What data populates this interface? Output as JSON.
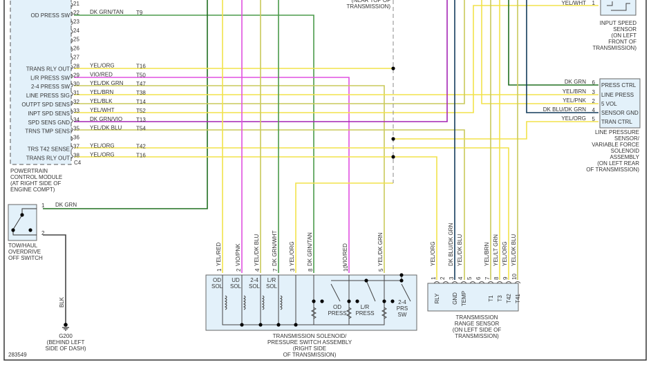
{
  "colors": {
    "yellow": "#f2e24a",
    "olive": "#c9c95a",
    "magenta": "#e050e0",
    "violet_thick": "#a424b4",
    "green": "#4a9a4a",
    "dark_green": "#1f6e1f",
    "dark_blue": "#123a5a",
    "black": "#444444",
    "box_fill": "#e3f1fa"
  },
  "pcm": {
    "pins": [
      {
        "pin": "21",
        "label": "",
        "wire": "",
        "circuit": ""
      },
      {
        "pin": "22",
        "label": "OD PRESS SW",
        "wire": "DK GRN/TAN",
        "circuit": "T9"
      },
      {
        "pin": "23",
        "label": "",
        "wire": "",
        "circuit": ""
      },
      {
        "pin": "24",
        "label": "",
        "wire": "",
        "circuit": ""
      },
      {
        "pin": "25",
        "label": "",
        "wire": "",
        "circuit": ""
      },
      {
        "pin": "26",
        "label": "",
        "wire": "",
        "circuit": ""
      },
      {
        "pin": "27",
        "label": "",
        "wire": "",
        "circuit": ""
      },
      {
        "pin": "28",
        "label": "TRANS RLY OUT",
        "wire": "YEL/ORG",
        "circuit": "T16"
      },
      {
        "pin": "29",
        "label": "L/R PRESS SW",
        "wire": "VIO/RED",
        "circuit": "T50"
      },
      {
        "pin": "30",
        "label": "2-4 PRESS SW",
        "wire": "YEL/DK GRN",
        "circuit": "T47"
      },
      {
        "pin": "31",
        "label": "LINE PRESS SIG",
        "wire": "YEL/BRN",
        "circuit": "T38"
      },
      {
        "pin": "32",
        "label": "OUTPT SPD SENS",
        "wire": "YEL/BLK",
        "circuit": "T14"
      },
      {
        "pin": "33",
        "label": "INPT SPD SENS",
        "wire": "YEL/WHT",
        "circuit": "T52"
      },
      {
        "pin": "34",
        "label": "SPD SENS GND",
        "wire": "DK GRN/VIO",
        "circuit": "T13"
      },
      {
        "pin": "35",
        "label": "TRNS TMP SENS",
        "wire": "YEL/DK BLU",
        "circuit": "T54"
      },
      {
        "pin": "36",
        "label": "",
        "wire": "",
        "circuit": ""
      },
      {
        "pin": "37",
        "label": "TRS T42 SENSE",
        "wire": "YEL/ORG",
        "circuit": "T42"
      },
      {
        "pin": "38",
        "label": "TRANS RLY OUT",
        "wire": "YEL/ORG",
        "circuit": "T16"
      }
    ],
    "connector": "C4",
    "caption": [
      "POWERTRAIN",
      "CONTROL MODULE",
      "(AT RIGHT SIDE OF",
      "ENGINE COMPT)"
    ]
  },
  "splice": {
    "caption": [
      "(NEAR TOP OF",
      "TRANSMISSION)"
    ]
  },
  "towhaul": {
    "caption": [
      "TOW/HAUL",
      "OVERDRIVE",
      "OFF SWITCH"
    ],
    "pin1": "1",
    "pin2": "2",
    "wire1": "DK GRN",
    "wire2": "BLK"
  },
  "ground": {
    "caption": [
      "G200",
      "(BEHIND LEFT",
      "SIDE OF DASH)"
    ]
  },
  "figure_id": "283549",
  "iss": {
    "pin": "1",
    "wire": "YEL/WHT",
    "caption": [
      "INPUT SPEED",
      "SENSOR",
      "(ON LEFT",
      "FRONT OF",
      "TRANSMISSION)"
    ]
  },
  "lps": {
    "pins": [
      {
        "pin": "6",
        "wire": "DK GRN",
        "label": "PRESS CTRL"
      },
      {
        "pin": "3",
        "wire": "YEL/BRN",
        "label": "LINE PRESS"
      },
      {
        "pin": "2",
        "wire": "YEL/PNK",
        "label": "5 VOL"
      },
      {
        "pin": "4",
        "wire": "DK BLU/DK GRN",
        "label": "SENSOR GND"
      },
      {
        "pin": "5",
        "wire": "YEL/ORG",
        "label": "TRAN CTRL"
      }
    ],
    "caption": [
      "LINE PRESSURE",
      "SENSOR/",
      "VARIABLE FORCE",
      "SOLENOID",
      "ASSEMBLY",
      "(ON LEFT REAR",
      "OF TRANSMISSION)"
    ]
  },
  "solenoid": {
    "pins": [
      {
        "pin": "1",
        "wire": "YEL/RED"
      },
      {
        "pin": "2",
        "wire": "VIO/PNK"
      },
      {
        "pin": "4",
        "wire": "YEL/DK BLU"
      },
      {
        "pin": "7",
        "wire": "DK GRN/WHT"
      },
      {
        "pin": "3",
        "wire": "YEL/ORG"
      },
      {
        "pin": "8",
        "wire": "DK GRN/TAN"
      },
      {
        "pin": "10",
        "wire": "VIO/RED"
      },
      {
        "pin": "5",
        "wire": "YEL/DK GRN"
      }
    ],
    "components": [
      [
        "OD",
        "SOL"
      ],
      [
        "UD",
        "SOL"
      ],
      [
        "2-4",
        "SOL"
      ],
      [
        "L/R",
        "SOL"
      ],
      [
        "OD",
        "PRESS"
      ],
      [
        "L/R",
        "PRESS"
      ],
      [
        "2-4",
        "PRS",
        "SW"
      ]
    ],
    "caption": [
      "TRANSMISSION SOLENOID/",
      "PRESSURE SWITCH ASSEMBLY",
      "(RIGHT SIDE",
      "OF TRANSMISSION)"
    ]
  },
  "trs": {
    "pins": [
      {
        "pin": "1",
        "wire": "YEL/ORG",
        "label": "RLY"
      },
      {
        "pin": "2",
        "wire": "",
        "label": ""
      },
      {
        "pin": "3",
        "wire": "DK BLU/DK GRN",
        "label": "GND"
      },
      {
        "pin": "4",
        "wire": "YEL/DK BLU",
        "label": "TEMP"
      },
      {
        "pin": "5",
        "wire": "",
        "label": ""
      },
      {
        "pin": "6",
        "wire": "",
        "label": ""
      },
      {
        "pin": "7",
        "wire": "YEL/BRN",
        "label": "T1"
      },
      {
        "pin": "8",
        "wire": "YEL/LT GRN",
        "label": "T3"
      },
      {
        "pin": "9",
        "wire": "YEL/ORG",
        "label": "T42"
      },
      {
        "pin": "10",
        "wire": "YEL/DK BLU",
        "label": "T41"
      }
    ],
    "caption": [
      "TRANSMISSION",
      "RANGE SENSOR",
      "(ON LEFT SIDE OF",
      "TRANSMISSION)"
    ]
  }
}
